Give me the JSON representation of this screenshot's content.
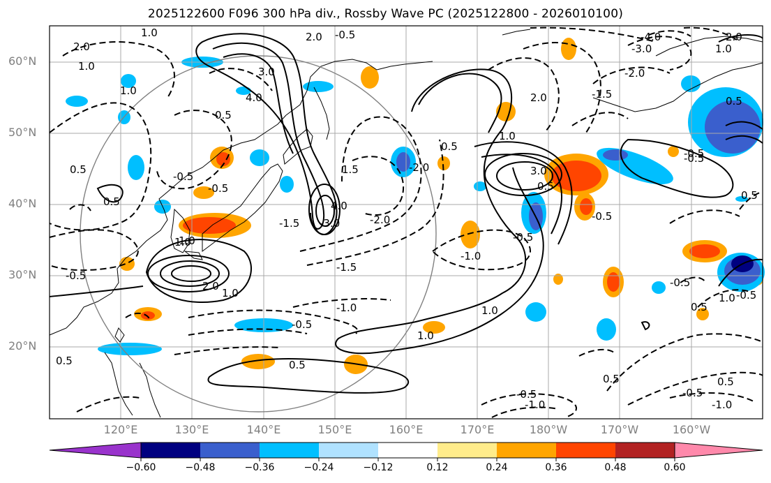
{
  "title": "2025122600 F096 300 hPa div., Rossby Wave PC (2025122800 - 2026010100)",
  "lat_labels": [
    "60°N",
    "50°N",
    "40°N",
    "30°N",
    "20°N"
  ],
  "lon_labels": [
    "120°E",
    "130°E",
    "140°E",
    "150°E",
    "160°E",
    "170°E",
    "180°W",
    "170°W",
    "160°W"
  ],
  "colorbar": {
    "ticks": [
      "−0.60",
      "−0.48",
      "−0.36",
      "−0.24",
      "−0.12",
      "0.12",
      "0.24",
      "0.36",
      "0.48",
      "0.60"
    ],
    "colors": [
      "#9933cc",
      "#000080",
      "#3a5fcd",
      "#00bfff",
      "#b0e2ff",
      "#ffffff",
      "#ffec8b",
      "#ffa500",
      "#ff4500",
      "#b22222",
      "#ff89ab"
    ]
  },
  "map": {
    "projection": "PlateCarree",
    "lon_range": [
      110,
      210
    ],
    "lat_range": [
      10,
      65
    ],
    "gridlines": true,
    "contour_labels": [
      "1.0",
      "2.0",
      "1.0",
      "1.0",
      "-0.5",
      "1.0",
      "3.0",
      "4.0",
      "0.5",
      "2.0",
      "-0.5",
      "-0.5",
      "-1.5",
      "-2.0",
      "1.5",
      "-2.0",
      "0.5",
      "1.0",
      "-1.5",
      "-1.0",
      "0.5",
      "1.0",
      "2.0",
      "1.0",
      "-0.5",
      "0.5",
      "3.0",
      "0.5",
      "4.0",
      "-3.0",
      "2.0",
      "-1.0",
      "-0.5",
      "-1.0",
      "-0.5",
      "1.0",
      "-0.5",
      "0.5",
      "-1.5",
      "-0.5",
      "1.0",
      "0.5",
      "-0.5",
      "-1.0",
      "-0.5",
      "0.5",
      "0.5",
      "-0.5",
      "1.0",
      "-0.5",
      "0.5",
      "0.5",
      "-4.0",
      "-3.0",
      "-2.0",
      "-0.5",
      "2.0",
      "1.0",
      "0.5"
    ]
  }
}
